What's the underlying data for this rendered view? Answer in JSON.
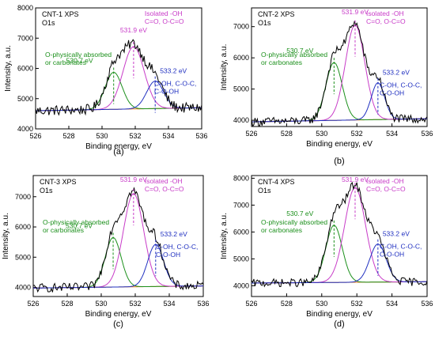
{
  "chart_data": [
    {
      "panel_label": "(a)",
      "sample_label": "CNT-1 XPS",
      "region_label": "O1s",
      "type": "line",
      "xlabel": "Binding energy, eV",
      "ylabel": "Intensity, a.u.",
      "xlim": [
        526,
        536
      ],
      "ylim": [
        4000,
        8000
      ],
      "xticks": [
        526,
        528,
        530,
        532,
        534,
        536
      ],
      "yticks": [
        4000,
        5000,
        6000,
        7000,
        8000
      ],
      "baseline": {
        "start": 4600,
        "end": 4700
      },
      "envelope_noise": 170,
      "fit_peaks": [
        {
          "center": 530.7,
          "height": 5870,
          "fwhm": 1.2,
          "color": "#1a8f1a",
          "position_label": "530.7 eV",
          "assignment": [
            "O-physically absorbed",
            "or carbonates"
          ]
        },
        {
          "center": 531.9,
          "height": 6720,
          "fwhm": 1.5,
          "color": "#c83cc8",
          "position_label": "531.9 eV",
          "assignment": [
            "Isolated -OH",
            "C=O, O-C=O"
          ]
        },
        {
          "center": 533.2,
          "height": 5580,
          "fwhm": 1.2,
          "color": "#2030c0",
          "position_label": "533.2 eV",
          "assignment": [
            "C-OH, C-O-C,",
            "C-O-OH"
          ]
        }
      ]
    },
    {
      "panel_label": "(b)",
      "sample_label": "CNT-2 XPS",
      "region_label": "O1s",
      "type": "line",
      "xlabel": "Binding energy, eV",
      "ylabel": "Intensity, a.u.",
      "xlim": [
        526,
        536
      ],
      "ylim": [
        3800,
        7600
      ],
      "xticks": [
        526,
        528,
        530,
        532,
        534,
        536
      ],
      "yticks": [
        4000,
        5000,
        6000,
        7000
      ],
      "baseline": {
        "start": 3950,
        "end": 4050
      },
      "envelope_noise": 140,
      "fit_peaks": [
        {
          "center": 530.7,
          "height": 5850,
          "fwhm": 1.1,
          "color": "#1a8f1a",
          "position_label": "530.7 eV",
          "assignment": [
            "O-physically absorbed",
            "or carbonates"
          ]
        },
        {
          "center": 531.9,
          "height": 7050,
          "fwhm": 1.3,
          "color": "#c83cc8",
          "position_label": "531.9 eV",
          "assignment": [
            "Isolated -OH",
            "C=O, O-C=O"
          ]
        },
        {
          "center": 533.2,
          "height": 5200,
          "fwhm": 0.9,
          "color": "#2030c0",
          "position_label": "533.2 eV",
          "assignment": [
            "C-OH, C-O-C,",
            "C-O-OH"
          ]
        }
      ]
    },
    {
      "panel_label": "(c)",
      "sample_label": "CNT-3 XPS",
      "region_label": "O1s",
      "type": "line",
      "xlabel": "Binding energy, eV",
      "ylabel": "Intensity, a.u.",
      "xlim": [
        526,
        536
      ],
      "ylim": [
        3700,
        7700
      ],
      "xticks": [
        526,
        528,
        530,
        532,
        534,
        536
      ],
      "yticks": [
        4000,
        5000,
        6000,
        7000
      ],
      "baseline": {
        "start": 3980,
        "end": 4050
      },
      "envelope_noise": 150,
      "fit_peaks": [
        {
          "center": 530.7,
          "height": 5650,
          "fwhm": 1.1,
          "color": "#1a8f1a",
          "position_label": "530.7 eV",
          "assignment": [
            "O-physically absorbed",
            "or carbonates"
          ]
        },
        {
          "center": 531.9,
          "height": 7100,
          "fwhm": 1.4,
          "color": "#c83cc8",
          "position_label": "531.9 eV",
          "assignment": [
            "Isolated -OH",
            "C=O, O-C=O"
          ]
        },
        {
          "center": 533.2,
          "height": 5420,
          "fwhm": 1.1,
          "color": "#2030c0",
          "position_label": "533.2 eV",
          "assignment": [
            "C-OH, C-O-C,",
            "C-O-OH"
          ]
        }
      ]
    },
    {
      "panel_label": "(d)",
      "sample_label": "CNT-4 XPS",
      "region_label": "O1s",
      "type": "line",
      "xlabel": "Binding energy, eV",
      "ylabel": "Intensity, a.u.",
      "xlim": [
        526,
        536
      ],
      "ylim": [
        3600,
        8100
      ],
      "xticks": [
        526,
        528,
        530,
        532,
        534,
        536
      ],
      "yticks": [
        4000,
        5000,
        6000,
        7000,
        8000
      ],
      "baseline": {
        "start": 4100,
        "end": 4150
      },
      "envelope_noise": 150,
      "fit_peaks": [
        {
          "center": 530.7,
          "height": 6250,
          "fwhm": 1.1,
          "color": "#1a8f1a",
          "position_label": "530.7 eV",
          "assignment": [
            "O-physically absorbed",
            "or carbonates"
          ]
        },
        {
          "center": 531.9,
          "height": 7650,
          "fwhm": 1.4,
          "color": "#c83cc8",
          "position_label": "531.9 eV",
          "assignment": [
            "Isolated -OH",
            "C=O, O-C=O"
          ]
        },
        {
          "center": 533.2,
          "height": 5550,
          "fwhm": 1.1,
          "color": "#2030c0",
          "position_label": "533.2 eV",
          "assignment": [
            "C-OH, C-O-C,",
            "C-O-OH"
          ]
        }
      ]
    }
  ]
}
